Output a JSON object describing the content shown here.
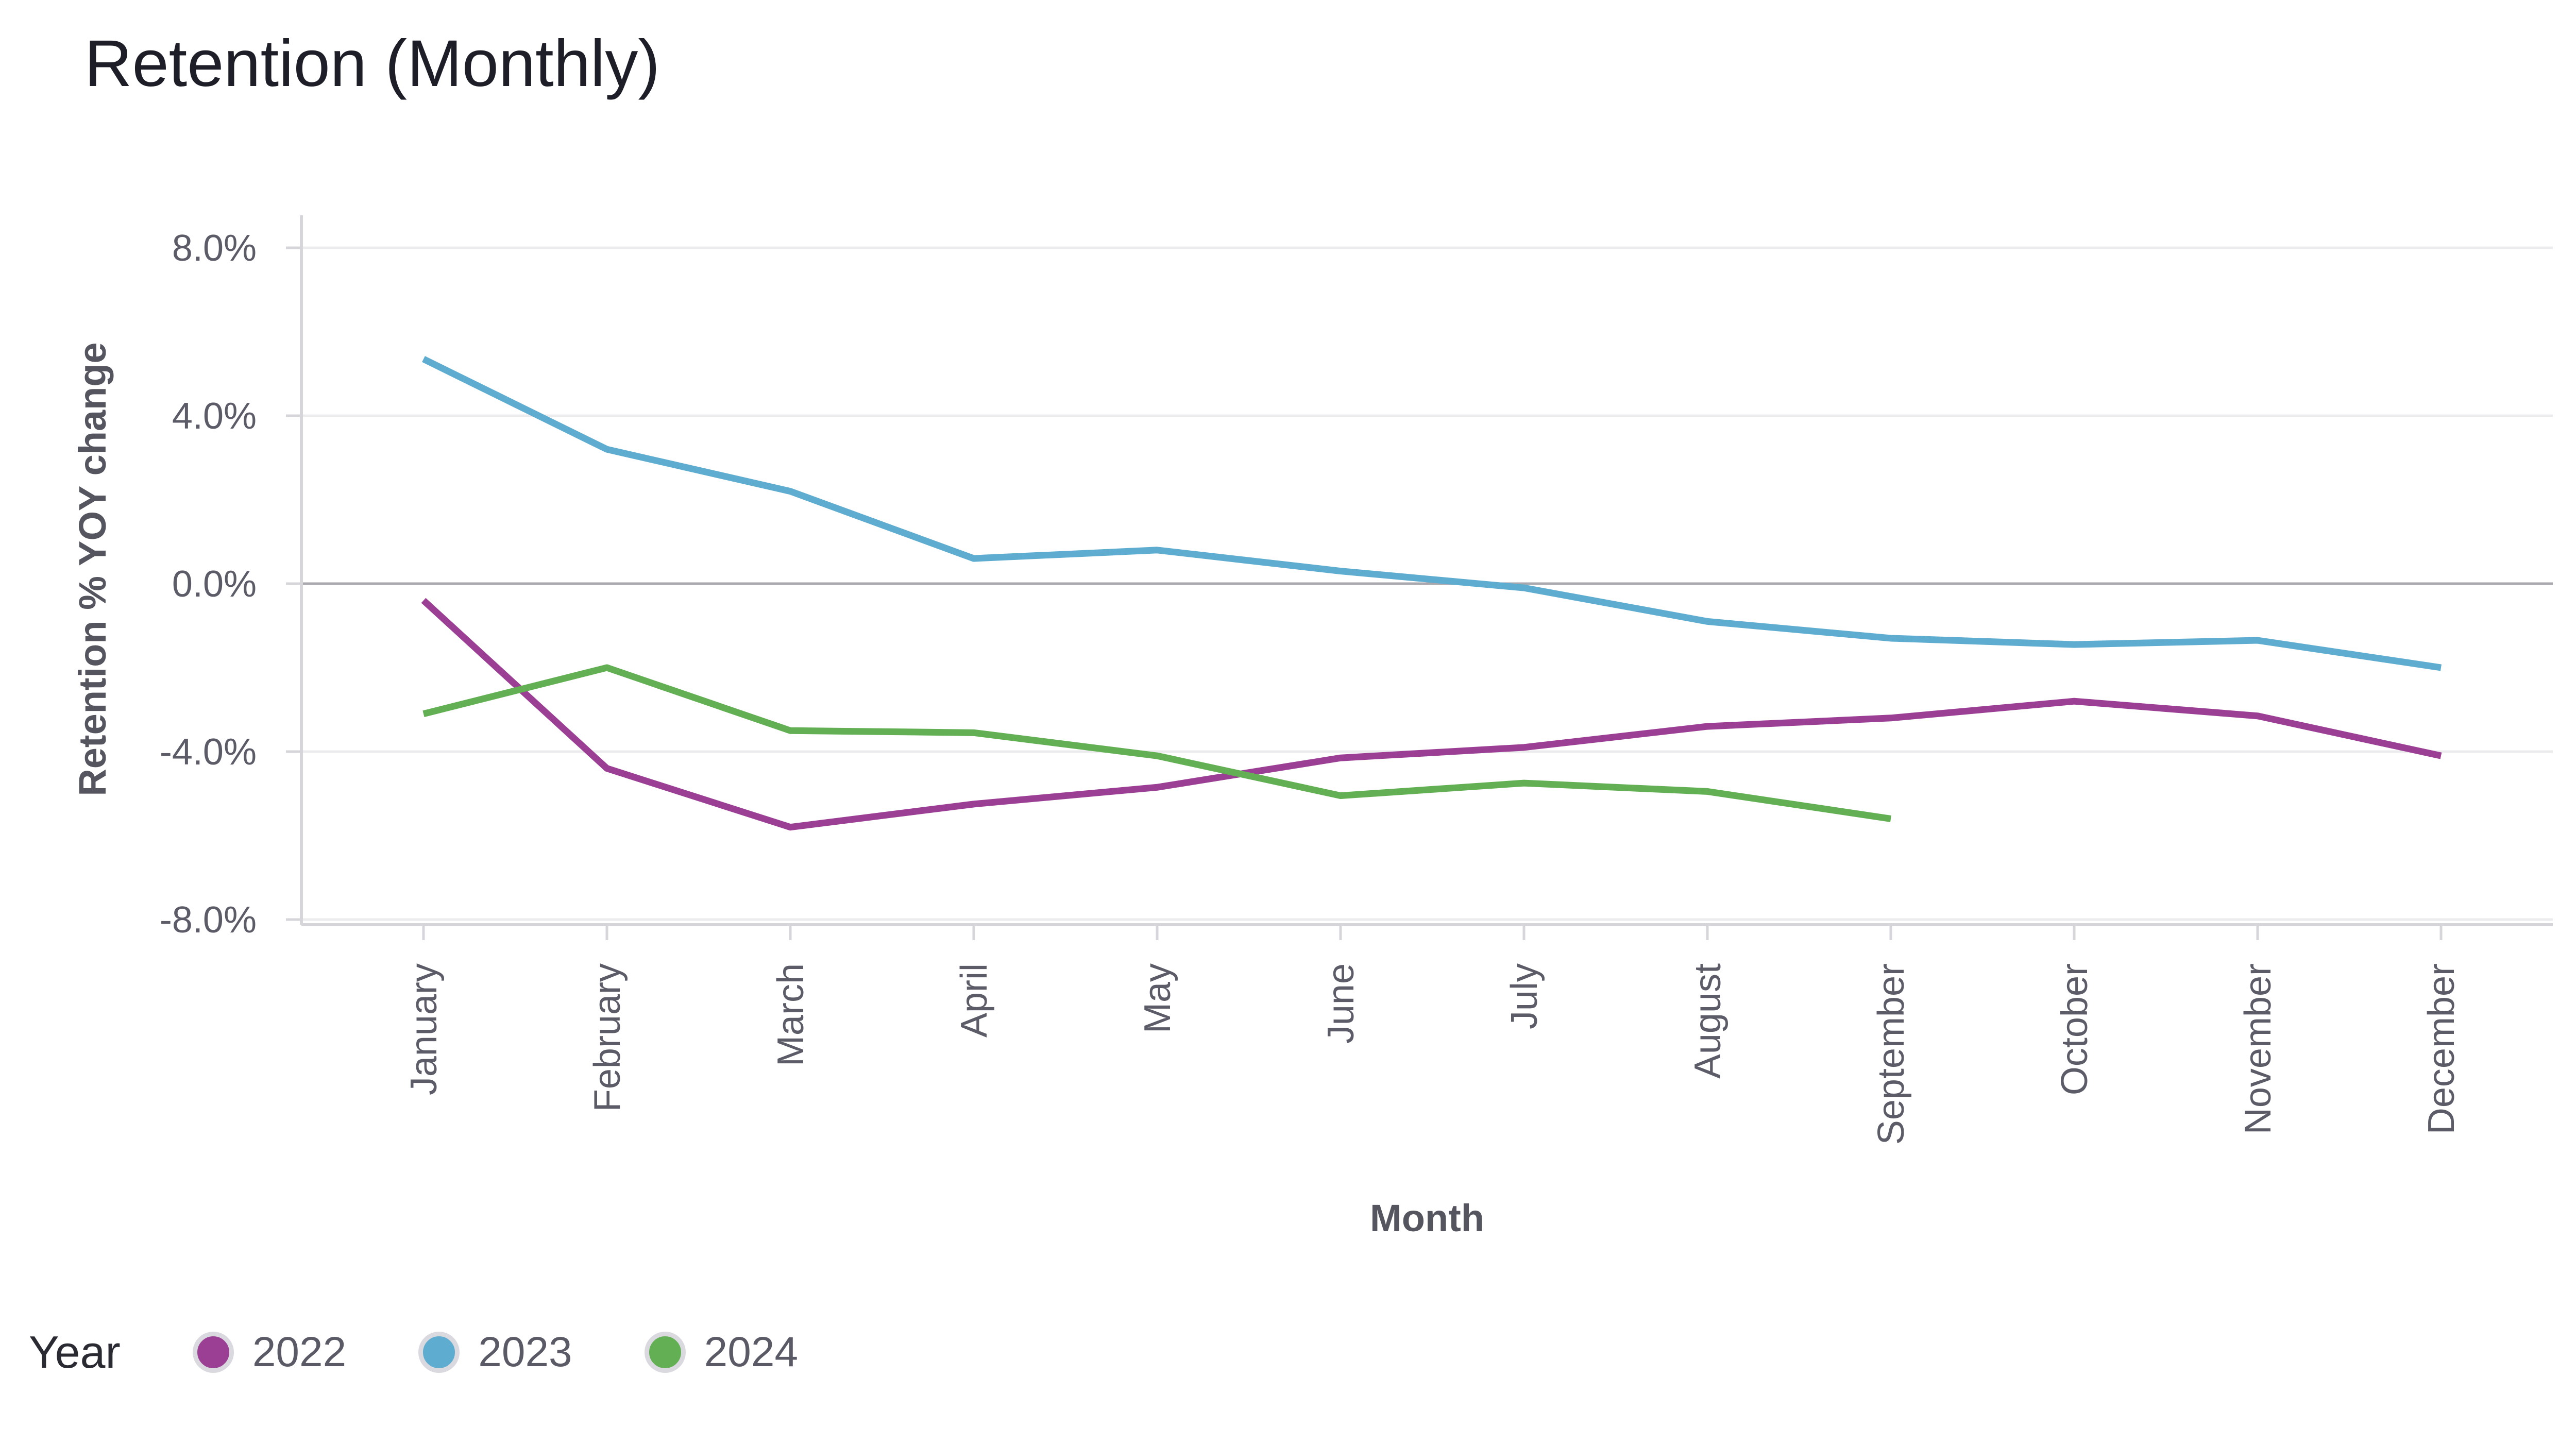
{
  "chart_data": {
    "type": "line",
    "title": "Retention (Monthly)",
    "xlabel": "Month",
    "ylabel": "Retention % YOY change",
    "categories": [
      "January",
      "February",
      "March",
      "April",
      "May",
      "June",
      "July",
      "August",
      "September",
      "October",
      "November",
      "December"
    ],
    "yticks": [
      8,
      4,
      0,
      -4,
      -8
    ],
    "ytick_labels": [
      "8.0%",
      "4.0%",
      "0.0%",
      "-4.0%",
      "-8.0%"
    ],
    "ylim": [
      -8.2,
      8.8
    ],
    "grid": true,
    "legend_title": "Year",
    "legend_position": "bottom-left",
    "series": [
      {
        "name": "2022",
        "color": "#9b3f95",
        "values": [
          -0.4,
          -4.4,
          -5.8,
          -5.25,
          -4.85,
          -4.15,
          -3.9,
          -3.4,
          -3.2,
          -2.8,
          -3.15,
          -4.1
        ]
      },
      {
        "name": "2023",
        "color": "#5eaccf",
        "values": [
          5.35,
          3.2,
          2.2,
          0.6,
          0.8,
          0.3,
          -0.1,
          -0.9,
          -1.3,
          -1.45,
          -1.35,
          -2.0
        ]
      },
      {
        "name": "2024",
        "color": "#62b053",
        "values": [
          -3.1,
          -2.0,
          -3.5,
          -3.55,
          -4.1,
          -5.05,
          -4.75,
          -4.95,
          -5.6,
          null,
          null,
          null
        ]
      }
    ]
  }
}
